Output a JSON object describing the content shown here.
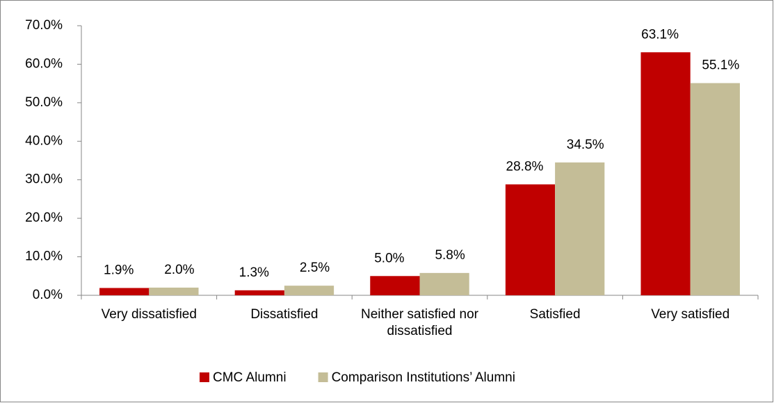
{
  "chart_data": {
    "type": "bar",
    "categories": [
      "Very dissatisfied",
      "Dissatisfied",
      "Neither satisfied nor dissatisfied",
      "Satisfied",
      "Very satisfied"
    ],
    "series": [
      {
        "name": "CMC Alumni",
        "color": "#c00000",
        "values": [
          1.9,
          1.3,
          5.0,
          28.8,
          63.1
        ],
        "value_labels": [
          "1.9%",
          "1.3%",
          "5.0%",
          "28.8%",
          "63.1%"
        ]
      },
      {
        "name": "Comparison Institutions’ Alumni",
        "color": "#c4bd97",
        "values": [
          2.0,
          2.5,
          5.8,
          34.5,
          55.1
        ],
        "value_labels": [
          "2.0%",
          "2.5%",
          "5.8%",
          "34.5%",
          "55.1%"
        ]
      }
    ],
    "ylim": [
      0,
      70
    ],
    "yticks": [
      {
        "value": 0,
        "label": "0.0%"
      },
      {
        "value": 10,
        "label": "10.0%"
      },
      {
        "value": 20,
        "label": "20.0%"
      },
      {
        "value": 30,
        "label": "30.0%"
      },
      {
        "value": 40,
        "label": "40.0%"
      },
      {
        "value": 50,
        "label": "50.0%"
      },
      {
        "value": 60,
        "label": "60.0%"
      },
      {
        "value": 70,
        "label": "70.0%"
      }
    ],
    "grid": false,
    "legend": "bottom"
  }
}
